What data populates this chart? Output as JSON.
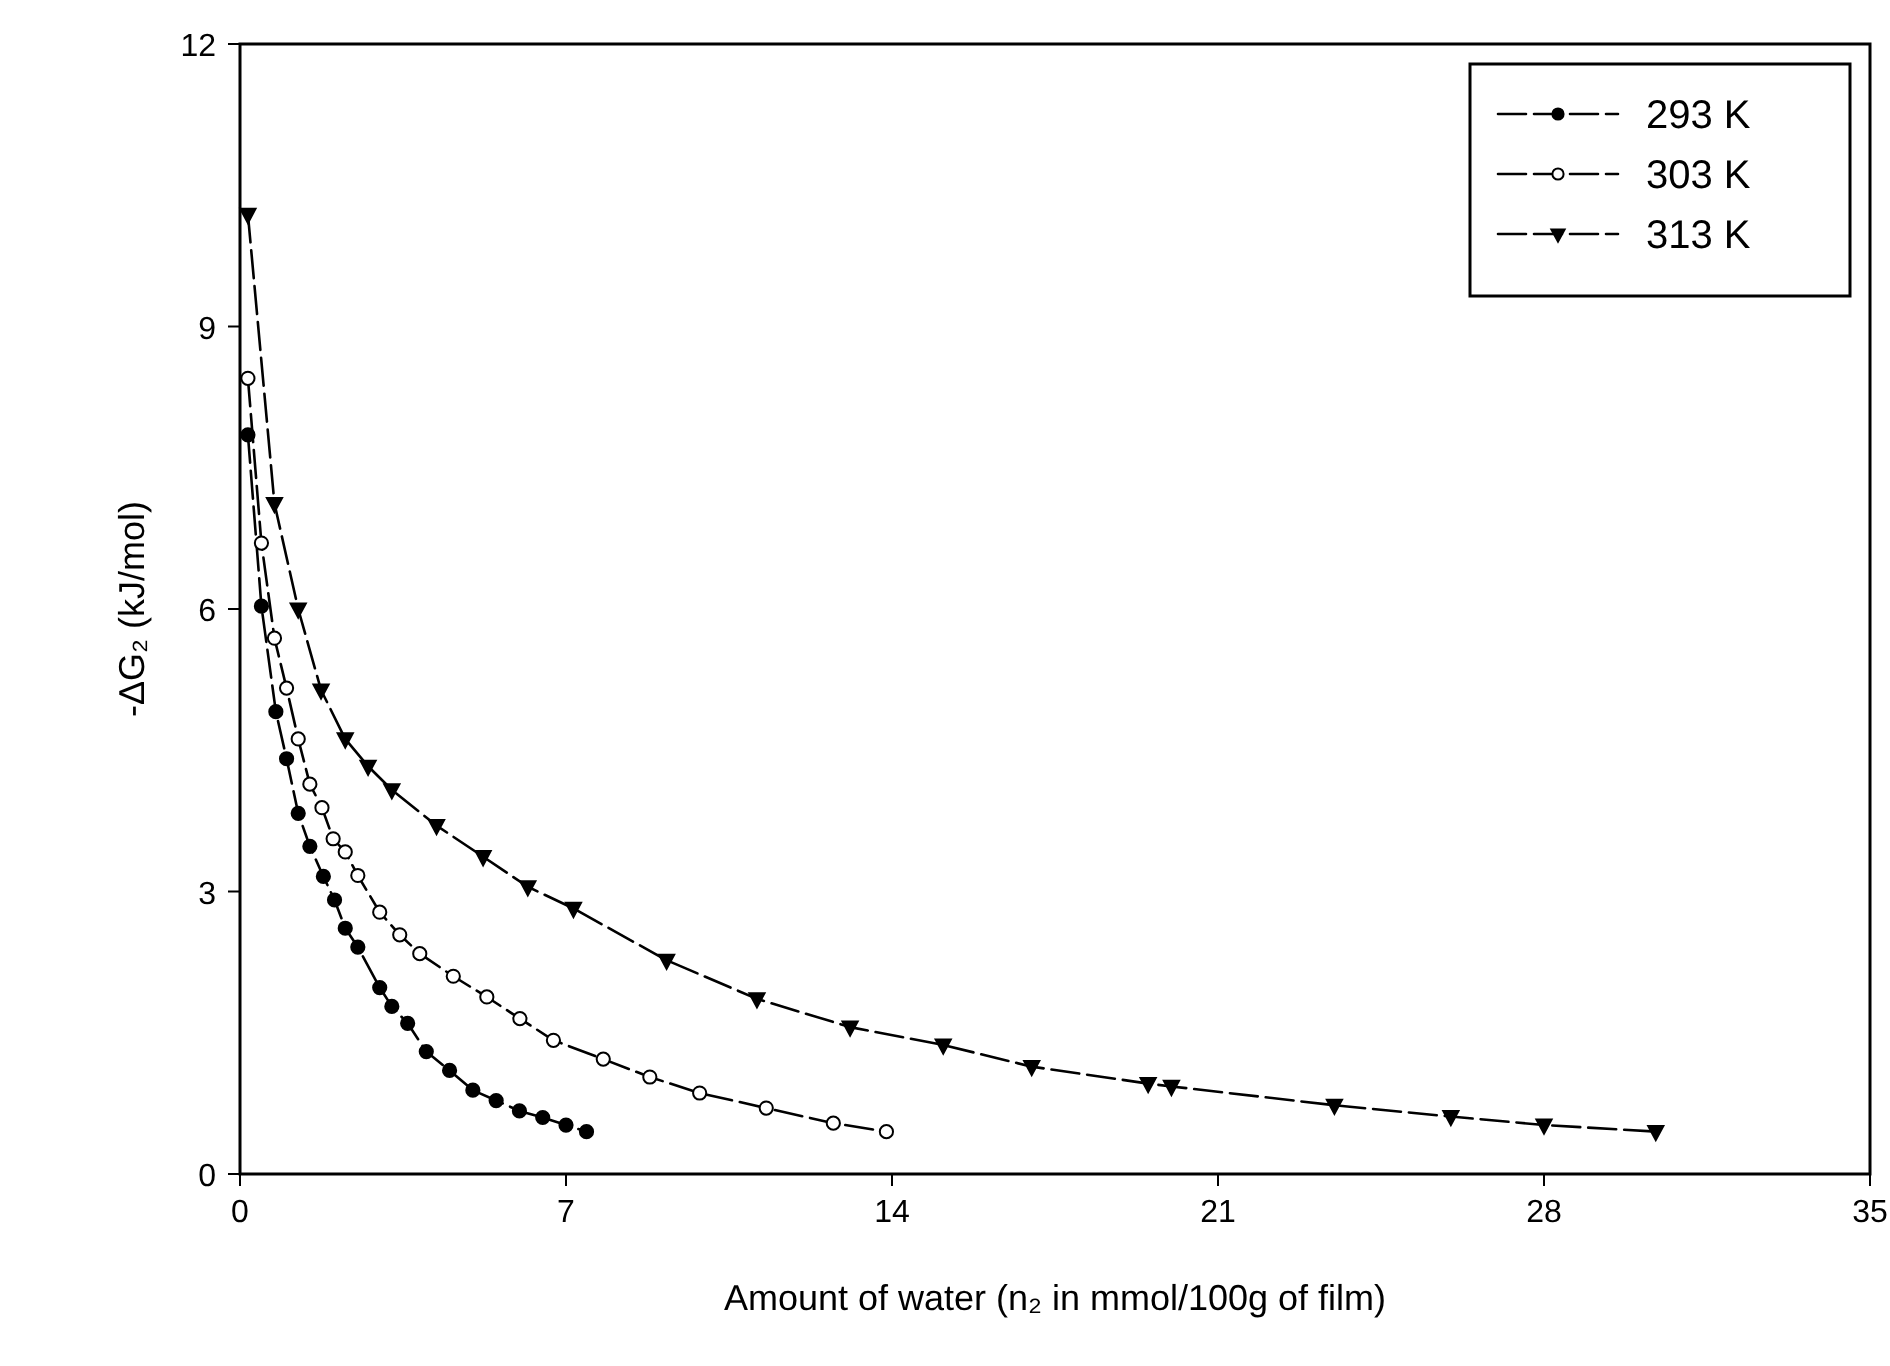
{
  "chart_data": {
    "type": "line",
    "xlabel": "Amount of water (n₂ in mmol/100g of film)",
    "ylabel": "-ΔG₂ (kJ/mol)",
    "xlim": [
      0,
      35
    ],
    "ylim": [
      0,
      12
    ],
    "xticks": [
      0,
      7,
      14,
      21,
      28,
      35
    ],
    "yticks": [
      0,
      3,
      6,
      9,
      12
    ],
    "legend": "top right",
    "line_style": "dashed",
    "grid": false,
    "series": [
      {
        "name": "293 K",
        "color": "#000000",
        "marker": "circle",
        "x": [
          0.17,
          0.46,
          0.77,
          1.0,
          1.25,
          1.5,
          1.79,
          2.03,
          2.26,
          2.53,
          3.0,
          3.26,
          3.6,
          4.0,
          4.5,
          5.0,
          5.5,
          6.0,
          6.5,
          7.0,
          7.44
        ],
        "values": [
          7.85,
          6.03,
          4.91,
          4.41,
          3.83,
          3.48,
          3.16,
          2.91,
          2.61,
          2.41,
          1.98,
          1.78,
          1.6,
          1.3,
          1.1,
          0.89,
          0.78,
          0.67,
          0.6,
          0.52,
          0.45
        ]
      },
      {
        "name": "303 K",
        "color": "#000000",
        "marker": "circle",
        "x": [
          0.17,
          0.46,
          0.74,
          1.0,
          1.25,
          1.5,
          1.76,
          2.0,
          2.26,
          2.53,
          3.0,
          3.43,
          3.86,
          4.58,
          5.3,
          6.01,
          6.73,
          7.8,
          8.8,
          9.87,
          11.3,
          12.74,
          13.88
        ],
        "values": [
          8.45,
          6.7,
          5.69,
          5.16,
          4.62,
          4.14,
          3.89,
          3.56,
          3.42,
          3.17,
          2.78,
          2.54,
          2.34,
          2.1,
          1.88,
          1.65,
          1.42,
          1.22,
          1.03,
          0.86,
          0.7,
          0.54,
          0.45
        ]
      },
      {
        "name": "313 K",
        "color": "#000000",
        "marker": "triangle",
        "x": [
          0.17,
          0.74,
          1.25,
          1.74,
          2.26,
          2.75,
          3.26,
          4.22,
          5.22,
          6.18,
          7.16,
          9.16,
          11.1,
          13.1,
          15.1,
          17.0,
          19.5,
          20.0,
          23.5,
          26.0,
          28.0,
          30.4
        ],
        "values": [
          10.19,
          7.12,
          6.0,
          5.14,
          4.62,
          4.33,
          4.08,
          3.7,
          3.37,
          3.05,
          2.82,
          2.27,
          1.86,
          1.56,
          1.37,
          1.14,
          0.96,
          0.93,
          0.73,
          0.61,
          0.52,
          0.45
        ]
      }
    ]
  }
}
